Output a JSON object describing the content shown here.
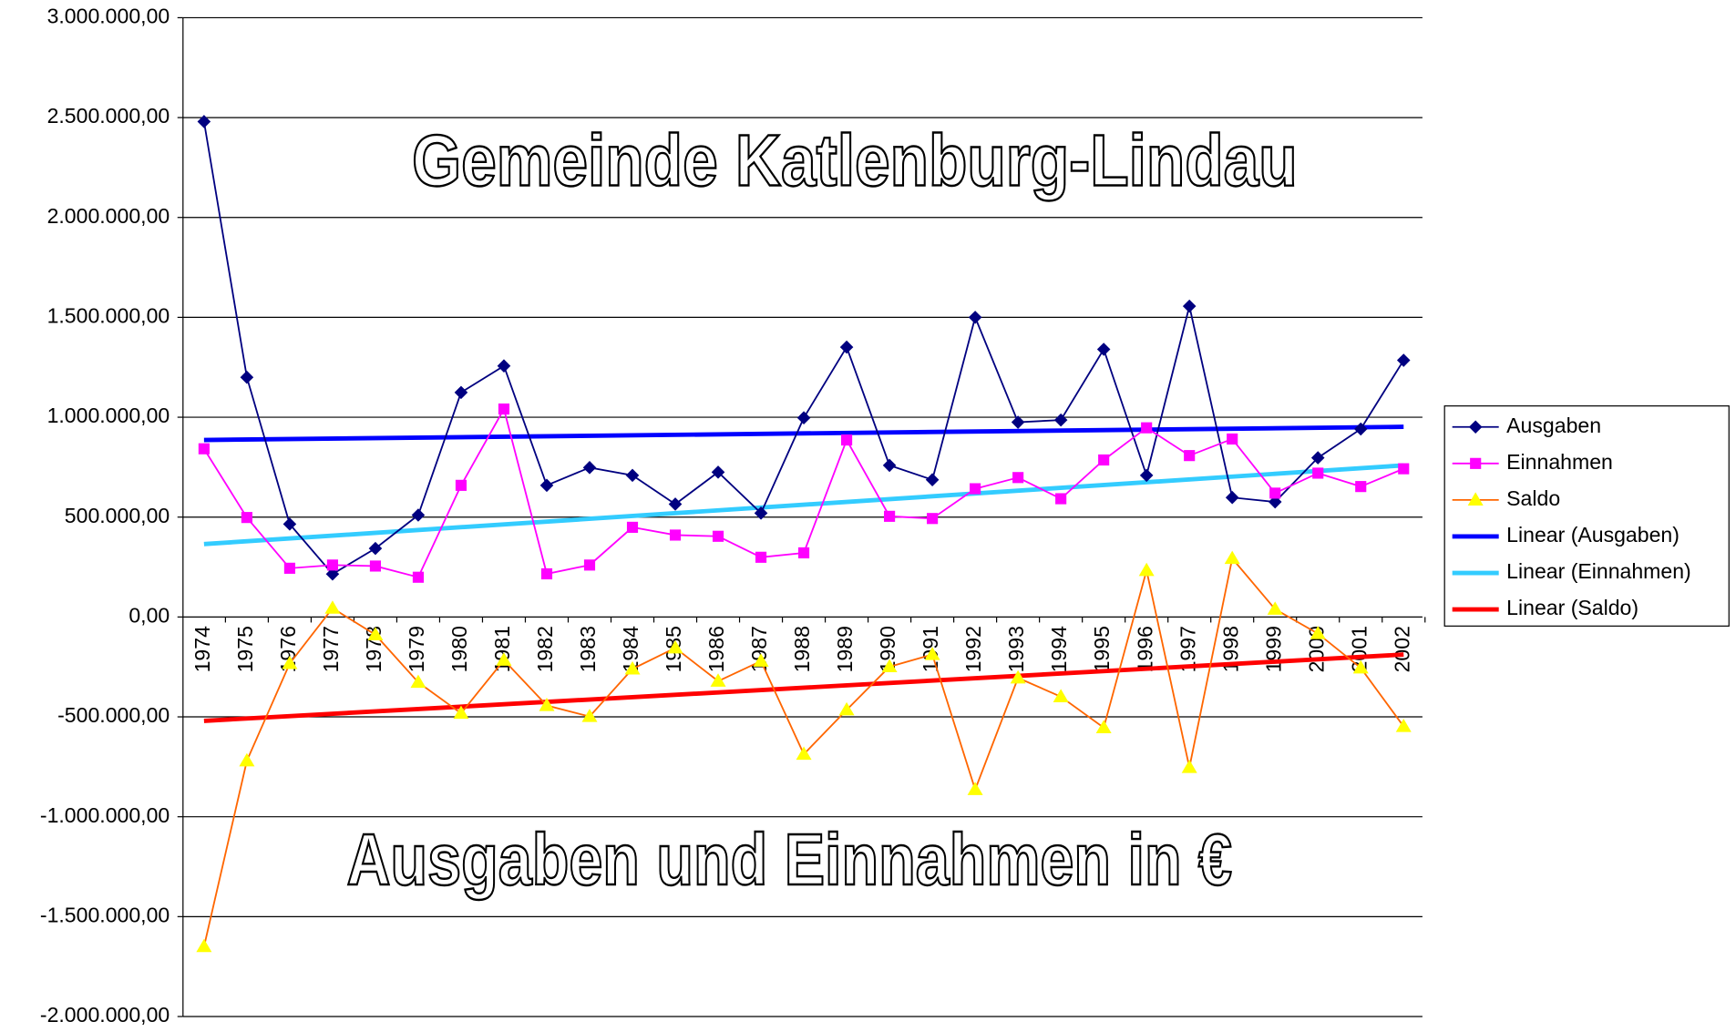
{
  "chart_data": {
    "type": "line",
    "title": "Gemeinde Katlenburg-Lindau",
    "subtitle": "Ausgaben und Einnahmen in €",
    "categories": [
      "1974",
      "1975",
      "1976",
      "1977",
      "1978",
      "1979",
      "1980",
      "1981",
      "1982",
      "1983",
      "1984",
      "1985",
      "1986",
      "1987",
      "1988",
      "1989",
      "1990",
      "1991",
      "1992",
      "1993",
      "1994",
      "1995",
      "1996",
      "1997",
      "1998",
      "1999",
      "2000",
      "2001",
      "2002"
    ],
    "series": [
      {
        "name": "Ausgaben",
        "color": "#000080",
        "marker": "diamond",
        "values": [
          2480000,
          1200000,
          465000,
          215000,
          343000,
          510000,
          1124000,
          1257000,
          659000,
          748000,
          709000,
          565000,
          725000,
          520000,
          997000,
          1351000,
          759000,
          687000,
          1500000,
          975000,
          986000,
          1340000,
          709000,
          1556000,
          598000,
          576000,
          797000,
          941000,
          1285000
        ]
      },
      {
        "name": "Einnahmen",
        "color": "#ff00ff",
        "marker": "square",
        "values": [
          842000,
          498000,
          244000,
          260000,
          255000,
          199000,
          659000,
          1041000,
          216000,
          260000,
          449000,
          410000,
          404000,
          299000,
          321000,
          886000,
          504000,
          493000,
          642000,
          698000,
          592000,
          786000,
          947000,
          808000,
          891000,
          620000,
          720000,
          653000,
          742000
        ]
      },
      {
        "name": "Saldo",
        "color": "#ff6600",
        "marker": "triangle",
        "marker_color": "#ffff00",
        "values": [
          -1650000,
          -720000,
          -233000,
          44000,
          -89000,
          -327000,
          -482000,
          -216000,
          -443000,
          -498000,
          -260000,
          -155000,
          -321000,
          -221000,
          -687000,
          -465000,
          -249000,
          -188000,
          -864000,
          -305000,
          -399000,
          -554000,
          233000,
          -753000,
          293000,
          39000,
          -83000,
          -255000,
          -548000
        ]
      }
    ],
    "trendlines": [
      {
        "name": "Linear (Ausgaben)",
        "color": "#0000ff",
        "values": [
          886000,
          952000
        ]
      },
      {
        "name": "Linear (Einnahmen)",
        "color": "#33ccff",
        "values": [
          365000,
          759000
        ]
      },
      {
        "name": "Linear (Saldo)",
        "color": "#ff0000",
        "values": [
          -520000,
          -188000
        ]
      }
    ],
    "ylim": [
      -2000000,
      3000000
    ],
    "yticks": [
      {
        "value": -2000000,
        "label": "-2.000.000,00"
      },
      {
        "value": -1500000,
        "label": "-1.500.000,00"
      },
      {
        "value": -1000000,
        "label": "-1.000.000,00"
      },
      {
        "value": -500000,
        "label": "-500.000,00"
      },
      {
        "value": 0,
        "label": "0,00"
      },
      {
        "value": 500000,
        "label": "500.000,00"
      },
      {
        "value": 1000000,
        "label": "1.000.000,00"
      },
      {
        "value": 1500000,
        "label": "1.500.000,00"
      },
      {
        "value": 2000000,
        "label": "2.000.000,00"
      },
      {
        "value": 2500000,
        "label": "2.500.000,00"
      },
      {
        "value": 3000000,
        "label": "3.000.000,00"
      }
    ],
    "grid": true,
    "legend": "right"
  }
}
